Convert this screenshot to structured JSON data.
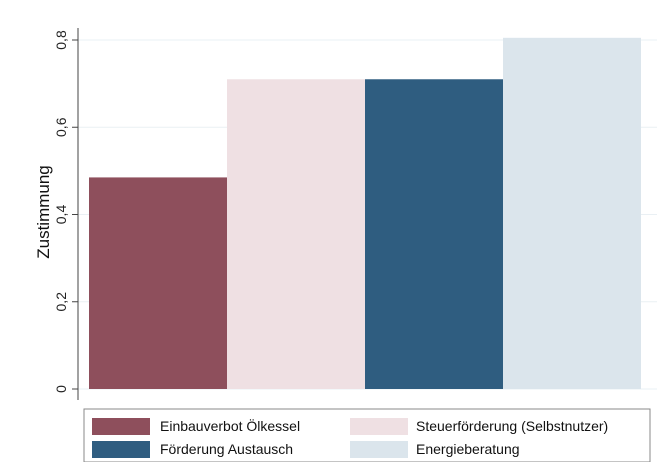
{
  "chart_data": {
    "type": "bar",
    "title": "",
    "xlabel": "",
    "ylabel": "Zustimmung",
    "ylim": [
      0,
      0.8
    ],
    "yticks": [
      "0",
      "0,2",
      "0,4",
      "0,6",
      "0,8"
    ],
    "grid": true,
    "legend_position": "bottom",
    "series": [
      {
        "name": "Einbauverbot Ölkessel",
        "value": 0.485,
        "color": "#8e4f5c"
      },
      {
        "name": "Steuerförderung (Selbstnutzer)",
        "value": 0.71,
        "color": "#efe0e3"
      },
      {
        "name": "Förderung Austausch",
        "value": 0.71,
        "color": "#2f5d80"
      },
      {
        "name": "Energieberatung",
        "value": 0.805,
        "color": "#dbe5ec"
      }
    ]
  }
}
